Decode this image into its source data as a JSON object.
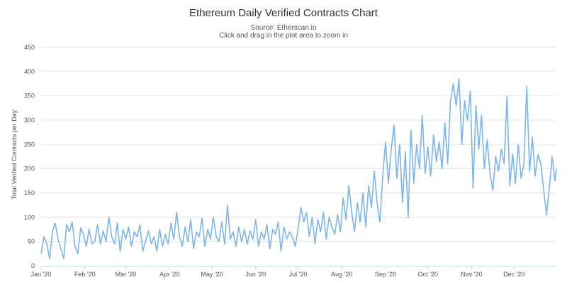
{
  "chart_data": {
    "type": "line",
    "title": "Ethereum Daily Verified Contracts Chart",
    "subtitle": "Source: Etherscan.io",
    "subtitle2": "Click and drag in the plot area to zoom in",
    "ylabel": "Total Verified Contracts per Day",
    "xlabel": "",
    "ylim": [
      0,
      450
    ],
    "y_ticks": [
      0,
      50,
      100,
      150,
      200,
      250,
      300,
      350,
      400,
      450
    ],
    "x_range": [
      "2020-01-01",
      "2020-12-31"
    ],
    "x_ticks": [
      {
        "date": "2020-01-01",
        "label": "Jan '20"
      },
      {
        "date": "2020-02-01",
        "label": "Feb '20"
      },
      {
        "date": "2020-03-01",
        "label": "Mar '20"
      },
      {
        "date": "2020-04-01",
        "label": "Apr '20"
      },
      {
        "date": "2020-05-01",
        "label": "May '20"
      },
      {
        "date": "2020-06-01",
        "label": "Jun '20"
      },
      {
        "date": "2020-07-01",
        "label": "Jul '20"
      },
      {
        "date": "2020-08-01",
        "label": "Aug '20"
      },
      {
        "date": "2020-09-01",
        "label": "Sep '20"
      },
      {
        "date": "2020-10-01",
        "label": "Oct '20"
      },
      {
        "date": "2020-11-01",
        "label": "Nov '20"
      },
      {
        "date": "2020-12-01",
        "label": "Dec '20"
      }
    ],
    "grid": true,
    "line_color": "#7cb5ec",
    "series": [
      {
        "values": [
          {
            "x": "2020-01-01",
            "y": 25
          },
          {
            "x": "2020-01-03",
            "y": 60
          },
          {
            "x": "2020-01-05",
            "y": 45
          },
          {
            "x": "2020-01-07",
            "y": 15
          },
          {
            "x": "2020-01-09",
            "y": 70
          },
          {
            "x": "2020-01-11",
            "y": 88
          },
          {
            "x": "2020-01-13",
            "y": 55
          },
          {
            "x": "2020-01-15",
            "y": 35
          },
          {
            "x": "2020-01-17",
            "y": 15
          },
          {
            "x": "2020-01-19",
            "y": 85
          },
          {
            "x": "2020-01-21",
            "y": 70
          },
          {
            "x": "2020-01-23",
            "y": 90
          },
          {
            "x": "2020-01-25",
            "y": 40
          },
          {
            "x": "2020-01-27",
            "y": 25
          },
          {
            "x": "2020-01-29",
            "y": 78
          },
          {
            "x": "2020-01-31",
            "y": 65
          },
          {
            "x": "2020-02-02",
            "y": 40
          },
          {
            "x": "2020-02-04",
            "y": 75
          },
          {
            "x": "2020-02-06",
            "y": 45
          },
          {
            "x": "2020-02-08",
            "y": 50
          },
          {
            "x": "2020-02-10",
            "y": 85
          },
          {
            "x": "2020-02-12",
            "y": 45
          },
          {
            "x": "2020-02-14",
            "y": 72
          },
          {
            "x": "2020-02-16",
            "y": 50
          },
          {
            "x": "2020-02-18",
            "y": 100
          },
          {
            "x": "2020-02-20",
            "y": 60
          },
          {
            "x": "2020-02-22",
            "y": 45
          },
          {
            "x": "2020-02-24",
            "y": 88
          },
          {
            "x": "2020-02-26",
            "y": 30
          },
          {
            "x": "2020-02-28",
            "y": 75
          },
          {
            "x": "2020-03-01",
            "y": 55
          },
          {
            "x": "2020-03-03",
            "y": 80
          },
          {
            "x": "2020-03-05",
            "y": 40
          },
          {
            "x": "2020-03-07",
            "y": 70
          },
          {
            "x": "2020-03-09",
            "y": 60
          },
          {
            "x": "2020-03-11",
            "y": 85
          },
          {
            "x": "2020-03-13",
            "y": 30
          },
          {
            "x": "2020-03-15",
            "y": 50
          },
          {
            "x": "2020-03-17",
            "y": 72
          },
          {
            "x": "2020-03-19",
            "y": 45
          },
          {
            "x": "2020-03-21",
            "y": 60
          },
          {
            "x": "2020-03-23",
            "y": 30
          },
          {
            "x": "2020-03-25",
            "y": 75
          },
          {
            "x": "2020-03-27",
            "y": 40
          },
          {
            "x": "2020-03-29",
            "y": 65
          },
          {
            "x": "2020-03-31",
            "y": 45
          },
          {
            "x": "2020-04-02",
            "y": 88
          },
          {
            "x": "2020-04-04",
            "y": 55
          },
          {
            "x": "2020-04-06",
            "y": 110
          },
          {
            "x": "2020-04-08",
            "y": 60
          },
          {
            "x": "2020-04-10",
            "y": 40
          },
          {
            "x": "2020-04-12",
            "y": 80
          },
          {
            "x": "2020-04-14",
            "y": 50
          },
          {
            "x": "2020-04-16",
            "y": 95
          },
          {
            "x": "2020-04-18",
            "y": 35
          },
          {
            "x": "2020-04-20",
            "y": 70
          },
          {
            "x": "2020-04-22",
            "y": 60
          },
          {
            "x": "2020-04-24",
            "y": 98
          },
          {
            "x": "2020-04-26",
            "y": 40
          },
          {
            "x": "2020-04-28",
            "y": 75
          },
          {
            "x": "2020-04-30",
            "y": 55
          },
          {
            "x": "2020-05-02",
            "y": 100
          },
          {
            "x": "2020-05-04",
            "y": 60
          },
          {
            "x": "2020-05-06",
            "y": 50
          },
          {
            "x": "2020-05-08",
            "y": 90
          },
          {
            "x": "2020-05-10",
            "y": 45
          },
          {
            "x": "2020-05-12",
            "y": 125
          },
          {
            "x": "2020-05-14",
            "y": 55
          },
          {
            "x": "2020-05-16",
            "y": 70
          },
          {
            "x": "2020-05-18",
            "y": 40
          },
          {
            "x": "2020-05-20",
            "y": 80
          },
          {
            "x": "2020-05-22",
            "y": 50
          },
          {
            "x": "2020-05-24",
            "y": 75
          },
          {
            "x": "2020-05-26",
            "y": 45
          },
          {
            "x": "2020-05-28",
            "y": 72
          },
          {
            "x": "2020-05-30",
            "y": 55
          },
          {
            "x": "2020-06-01",
            "y": 95
          },
          {
            "x": "2020-06-03",
            "y": 40
          },
          {
            "x": "2020-06-05",
            "y": 70
          },
          {
            "x": "2020-06-07",
            "y": 55
          },
          {
            "x": "2020-06-09",
            "y": 85
          },
          {
            "x": "2020-06-11",
            "y": 35
          },
          {
            "x": "2020-06-13",
            "y": 75
          },
          {
            "x": "2020-06-15",
            "y": 65
          },
          {
            "x": "2020-06-17",
            "y": 90
          },
          {
            "x": "2020-06-19",
            "y": 30
          },
          {
            "x": "2020-06-21",
            "y": 80
          },
          {
            "x": "2020-06-23",
            "y": 55
          },
          {
            "x": "2020-06-25",
            "y": 70
          },
          {
            "x": "2020-06-27",
            "y": 60
          },
          {
            "x": "2020-06-29",
            "y": 40
          },
          {
            "x": "2020-07-01",
            "y": 75
          },
          {
            "x": "2020-07-03",
            "y": 120
          },
          {
            "x": "2020-07-05",
            "y": 90
          },
          {
            "x": "2020-07-07",
            "y": 110
          },
          {
            "x": "2020-07-09",
            "y": 60
          },
          {
            "x": "2020-07-11",
            "y": 100
          },
          {
            "x": "2020-07-13",
            "y": 45
          },
          {
            "x": "2020-07-15",
            "y": 95
          },
          {
            "x": "2020-07-17",
            "y": 70
          },
          {
            "x": "2020-07-19",
            "y": 110
          },
          {
            "x": "2020-07-21",
            "y": 55
          },
          {
            "x": "2020-07-23",
            "y": 100
          },
          {
            "x": "2020-07-25",
            "y": 80
          },
          {
            "x": "2020-07-27",
            "y": 65
          },
          {
            "x": "2020-07-29",
            "y": 105
          },
          {
            "x": "2020-07-31",
            "y": 70
          },
          {
            "x": "2020-08-02",
            "y": 140
          },
          {
            "x": "2020-08-04",
            "y": 95
          },
          {
            "x": "2020-08-06",
            "y": 165
          },
          {
            "x": "2020-08-08",
            "y": 110
          },
          {
            "x": "2020-08-10",
            "y": 70
          },
          {
            "x": "2020-08-12",
            "y": 130
          },
          {
            "x": "2020-08-14",
            "y": 90
          },
          {
            "x": "2020-08-16",
            "y": 150
          },
          {
            "x": "2020-08-18",
            "y": 80
          },
          {
            "x": "2020-08-20",
            "y": 165
          },
          {
            "x": "2020-08-22",
            "y": 120
          },
          {
            "x": "2020-08-24",
            "y": 195
          },
          {
            "x": "2020-08-26",
            "y": 130
          },
          {
            "x": "2020-08-28",
            "y": 90
          },
          {
            "x": "2020-08-30",
            "y": 185
          },
          {
            "x": "2020-09-01",
            "y": 255
          },
          {
            "x": "2020-09-03",
            "y": 170
          },
          {
            "x": "2020-09-05",
            "y": 240
          },
          {
            "x": "2020-09-07",
            "y": 290
          },
          {
            "x": "2020-09-09",
            "y": 180
          },
          {
            "x": "2020-09-11",
            "y": 250
          },
          {
            "x": "2020-09-13",
            "y": 130
          },
          {
            "x": "2020-09-15",
            "y": 235
          },
          {
            "x": "2020-09-17",
            "y": 100
          },
          {
            "x": "2020-09-19",
            "y": 280
          },
          {
            "x": "2020-09-21",
            "y": 170
          },
          {
            "x": "2020-09-23",
            "y": 250
          },
          {
            "x": "2020-09-25",
            "y": 200
          },
          {
            "x": "2020-09-27",
            "y": 310
          },
          {
            "x": "2020-09-29",
            "y": 190
          },
          {
            "x": "2020-10-01",
            "y": 245
          },
          {
            "x": "2020-10-03",
            "y": 185
          },
          {
            "x": "2020-10-05",
            "y": 270
          },
          {
            "x": "2020-10-07",
            "y": 215
          },
          {
            "x": "2020-10-09",
            "y": 255
          },
          {
            "x": "2020-10-11",
            "y": 200
          },
          {
            "x": "2020-10-13",
            "y": 295
          },
          {
            "x": "2020-10-15",
            "y": 210
          },
          {
            "x": "2020-10-17",
            "y": 340
          },
          {
            "x": "2020-10-19",
            "y": 375
          },
          {
            "x": "2020-10-21",
            "y": 330
          },
          {
            "x": "2020-10-23",
            "y": 385
          },
          {
            "x": "2020-10-25",
            "y": 250
          },
          {
            "x": "2020-10-27",
            "y": 340
          },
          {
            "x": "2020-10-29",
            "y": 300
          },
          {
            "x": "2020-10-31",
            "y": 360
          },
          {
            "x": "2020-11-02",
            "y": 160
          },
          {
            "x": "2020-11-04",
            "y": 330
          },
          {
            "x": "2020-11-06",
            "y": 240
          },
          {
            "x": "2020-11-08",
            "y": 310
          },
          {
            "x": "2020-11-10",
            "y": 200
          },
          {
            "x": "2020-11-12",
            "y": 260
          },
          {
            "x": "2020-11-14",
            "y": 190
          },
          {
            "x": "2020-11-16",
            "y": 155
          },
          {
            "x": "2020-11-18",
            "y": 225
          },
          {
            "x": "2020-11-20",
            "y": 195
          },
          {
            "x": "2020-11-22",
            "y": 240
          },
          {
            "x": "2020-11-24",
            "y": 210
          },
          {
            "x": "2020-11-26",
            "y": 350
          },
          {
            "x": "2020-11-28",
            "y": 165
          },
          {
            "x": "2020-11-30",
            "y": 230
          },
          {
            "x": "2020-12-02",
            "y": 170
          },
          {
            "x": "2020-12-04",
            "y": 250
          },
          {
            "x": "2020-12-06",
            "y": 180
          },
          {
            "x": "2020-12-08",
            "y": 210
          },
          {
            "x": "2020-12-10",
            "y": 370
          },
          {
            "x": "2020-12-12",
            "y": 195
          },
          {
            "x": "2020-12-14",
            "y": 265
          },
          {
            "x": "2020-12-16",
            "y": 185
          },
          {
            "x": "2020-12-18",
            "y": 230
          },
          {
            "x": "2020-12-20",
            "y": 210
          },
          {
            "x": "2020-12-22",
            "y": 155
          },
          {
            "x": "2020-12-24",
            "y": 105
          },
          {
            "x": "2020-12-26",
            "y": 160
          },
          {
            "x": "2020-12-28",
            "y": 225
          },
          {
            "x": "2020-12-30",
            "y": 175
          },
          {
            "x": "2020-12-31",
            "y": 200
          }
        ]
      }
    ]
  }
}
